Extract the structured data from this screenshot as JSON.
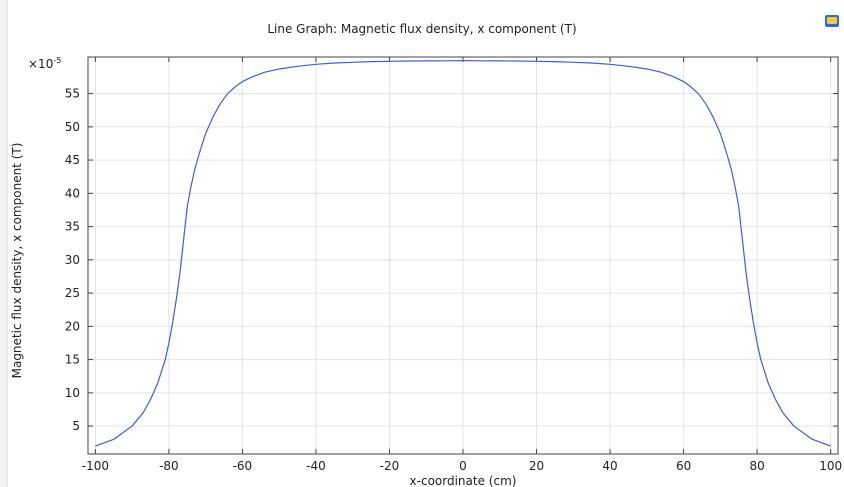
{
  "chart_data": {
    "type": "line",
    "title": "Line Graph: Magnetic flux density, x component (T)",
    "xlabel": "x-coordinate (cm)",
    "ylabel": "Magnetic flux density, x component (T)",
    "y_multiplier": "×10",
    "y_multiplier_exp": "-5",
    "xlim": [
      -102,
      102
    ],
    "ylim": [
      0.8,
      60.5
    ],
    "x_ticks": [
      -100,
      -80,
      -60,
      -40,
      -20,
      0,
      20,
      40,
      60,
      80,
      100
    ],
    "y_ticks": [
      5,
      10,
      15,
      20,
      25,
      30,
      35,
      40,
      45,
      50,
      55
    ],
    "grid": true,
    "line_color": "#3b5fd9",
    "series": [
      {
        "x": [
          -100,
          -95,
          -90,
          -87,
          -85,
          -83,
          -81,
          -80,
          -79,
          -78,
          -77,
          -76,
          -75,
          -74,
          -73,
          -72,
          -71,
          -70,
          -68,
          -66,
          -64,
          -62,
          -60,
          -57,
          -54,
          -50,
          -45,
          -40,
          -35,
          -30,
          -25,
          -20,
          -15,
          -10,
          -5,
          0,
          5,
          10,
          15,
          20,
          25,
          30,
          35,
          40,
          45,
          50,
          54,
          57,
          60,
          62,
          64,
          66,
          68,
          70,
          71,
          72,
          73,
          74,
          75,
          76,
          77,
          78,
          79,
          80,
          81,
          83,
          85,
          87,
          90,
          95,
          100
        ],
        "y": [
          2.0,
          3.0,
          5.0,
          7.0,
          9.0,
          11.5,
          15.0,
          17.5,
          20.5,
          24.0,
          28.0,
          33.0,
          38.0,
          41.0,
          43.5,
          45.5,
          47.3,
          49.0,
          51.5,
          53.5,
          55.0,
          56.0,
          56.8,
          57.6,
          58.2,
          58.7,
          59.1,
          59.4,
          59.6,
          59.7,
          59.8,
          59.85,
          59.9,
          59.92,
          59.93,
          59.95,
          59.93,
          59.92,
          59.9,
          59.85,
          59.8,
          59.7,
          59.6,
          59.4,
          59.1,
          58.7,
          58.2,
          57.6,
          56.8,
          56.0,
          55.0,
          53.5,
          51.5,
          49.0,
          47.3,
          45.5,
          43.5,
          41.0,
          38.0,
          33.0,
          28.0,
          24.0,
          20.5,
          17.5,
          15.0,
          11.5,
          9.0,
          7.0,
          5.0,
          3.0,
          2.0
        ]
      }
    ]
  }
}
